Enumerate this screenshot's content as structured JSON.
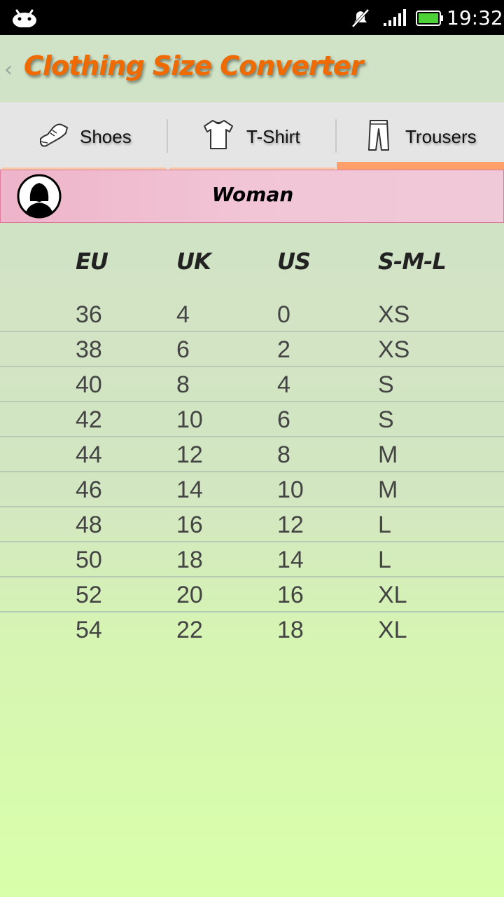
{
  "status_bar": {
    "time": "19:32",
    "icons": [
      "android-icon",
      "mute-icon",
      "signal-icon",
      "battery-icon"
    ]
  },
  "header": {
    "back_icon": "‹",
    "title": "Clothing Size Converter",
    "title_color": "#ef6a00"
  },
  "tabs": [
    {
      "label": "Shoes",
      "icon": "shoe-icon",
      "active": false
    },
    {
      "label": "T-Shirt",
      "icon": "tshirt-icon",
      "active": false
    },
    {
      "label": "Trousers",
      "icon": "trousers-icon",
      "active": true
    }
  ],
  "gender": {
    "label": "Woman",
    "icon": "woman-avatar-icon"
  },
  "table": {
    "columns": [
      "EU",
      "UK",
      "US",
      "S-M-L"
    ],
    "rows": [
      [
        "36",
        "4",
        "0",
        "XS"
      ],
      [
        "38",
        "6",
        "2",
        "XS"
      ],
      [
        "40",
        "8",
        "4",
        "S"
      ],
      [
        "42",
        "10",
        "6",
        "S"
      ],
      [
        "44",
        "12",
        "8",
        "M"
      ],
      [
        "46",
        "14",
        "10",
        "M"
      ],
      [
        "48",
        "16",
        "12",
        "L"
      ],
      [
        "50",
        "18",
        "14",
        "L"
      ],
      [
        "52",
        "20",
        "16",
        "XL"
      ],
      [
        "54",
        "22",
        "18",
        "XL"
      ]
    ]
  },
  "colors": {
    "accent": "#ffa06a",
    "gender_bar": "#f1c5d6",
    "background_top": "#cfe0c8",
    "background_bottom": "#d8ffaa"
  }
}
